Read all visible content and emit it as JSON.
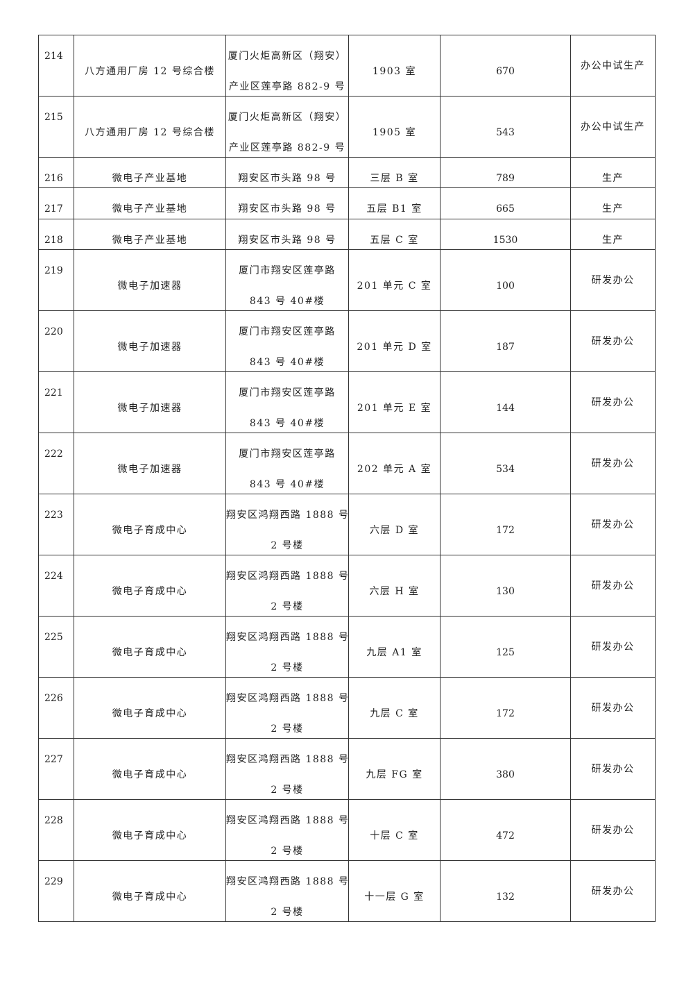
{
  "rows": [
    {
      "no": "214",
      "name": "八方通用厂房 12 号综合楼",
      "addr": [
        "厦门火炬高新区（翔安）",
        "产业区莲亭路 882-9 号"
      ],
      "room": "1903 室",
      "area": "670",
      "use": "办公中试生产"
    },
    {
      "no": "215",
      "name": "八方通用厂房 12 号综合楼",
      "addr": [
        "厦门火炬高新区（翔安）",
        "产业区莲亭路 882-9 号"
      ],
      "room": "1905 室",
      "area": "543",
      "use": "办公中试生产"
    },
    {
      "no": "216",
      "name": "微电子产业基地",
      "addr": [
        "翔安区市头路 98 号"
      ],
      "room": "三层 B 室",
      "area": "789",
      "use": "生产"
    },
    {
      "no": "217",
      "name": "微电子产业基地",
      "addr": [
        "翔安区市头路 98 号"
      ],
      "room": "五层 B1 室",
      "area": "665",
      "use": "生产"
    },
    {
      "no": "218",
      "name": "微电子产业基地",
      "addr": [
        "翔安区市头路 98 号"
      ],
      "room": "五层 C 室",
      "area": "1530",
      "use": "生产"
    },
    {
      "no": "219",
      "name": "微电子加速器",
      "addr": [
        "厦门市翔安区莲亭路",
        "843 号 40#楼"
      ],
      "room": "201 单元 C 室",
      "area": "100",
      "use": "研发办公"
    },
    {
      "no": "220",
      "name": "微电子加速器",
      "addr": [
        "厦门市翔安区莲亭路",
        "843 号 40#楼"
      ],
      "room": "201 单元 D 室",
      "area": "187",
      "use": "研发办公"
    },
    {
      "no": "221",
      "name": "微电子加速器",
      "addr": [
        "厦门市翔安区莲亭路",
        "843 号 40#楼"
      ],
      "room": "201 单元 E 室",
      "area": "144",
      "use": "研发办公"
    },
    {
      "no": "222",
      "name": "微电子加速器",
      "addr": [
        "厦门市翔安区莲亭路",
        "843 号 40#楼"
      ],
      "room": "202 单元 A 室",
      "area": "534",
      "use": "研发办公"
    },
    {
      "no": "223",
      "name": "微电子育成中心",
      "addr": [
        "翔安区鸿翔西路 1888 号",
        "2 号楼"
      ],
      "room": "六层 D 室",
      "area": "172",
      "use": "研发办公"
    },
    {
      "no": "224",
      "name": "微电子育成中心",
      "addr": [
        "翔安区鸿翔西路 1888 号",
        "2 号楼"
      ],
      "room": "六层 H 室",
      "area": "130",
      "use": "研发办公"
    },
    {
      "no": "225",
      "name": "微电子育成中心",
      "addr": [
        "翔安区鸿翔西路 1888 号",
        "2 号楼"
      ],
      "room": "九层 A1 室",
      "area": "125",
      "use": "研发办公"
    },
    {
      "no": "226",
      "name": "微电子育成中心",
      "addr": [
        "翔安区鸿翔西路 1888 号",
        "2 号楼"
      ],
      "room": "九层 C 室",
      "area": "172",
      "use": "研发办公"
    },
    {
      "no": "227",
      "name": "微电子育成中心",
      "addr": [
        "翔安区鸿翔西路 1888 号",
        "2 号楼"
      ],
      "room": "九层 FG 室",
      "area": "380",
      "use": "研发办公"
    },
    {
      "no": "228",
      "name": "微电子育成中心",
      "addr": [
        "翔安区鸿翔西路 1888 号",
        "2 号楼"
      ],
      "room": "十层 C 室",
      "area": "472",
      "use": "研发办公"
    },
    {
      "no": "229",
      "name": "微电子育成中心",
      "addr": [
        "翔安区鸿翔西路 1888 号",
        "2 号楼"
      ],
      "room": "十一层 G 室",
      "area": "132",
      "use": "研发办公"
    }
  ]
}
